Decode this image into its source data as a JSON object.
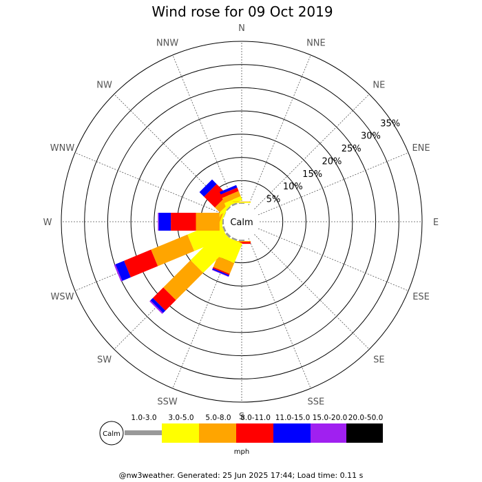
{
  "chart_data": {
    "type": "windrose",
    "title": "Wind rose for 09 Oct 2019",
    "directions": [
      "N",
      "NNE",
      "NE",
      "ENE",
      "E",
      "ESE",
      "SE",
      "SSE",
      "S",
      "SSW",
      "SW",
      "WSW",
      "W",
      "WNW",
      "NW",
      "NNW"
    ],
    "radial_ticks": [
      "5%",
      "10%",
      "15%",
      "20%",
      "25%",
      "30%",
      "35%"
    ],
    "radial_values": [
      5,
      10,
      15,
      20,
      25,
      30,
      35
    ],
    "rmax": 35,
    "calm_label": "Calm",
    "unit": "mph",
    "bins": [
      "1.0-3.0",
      "3.0-5.0",
      "5.0-8.0",
      "8.0-11.0",
      "11.0-15.0",
      "15.0-20.0",
      "20.0-50.0"
    ],
    "bin_colors": [
      "#999999",
      "#ffff00",
      "#ffa500",
      "#ff0000",
      "#0000ff",
      "#a020f0",
      "#000000"
    ],
    "series": [
      {
        "direction": "S",
        "values": [
          0.3,
          0.0,
          0.2,
          0.4,
          0.0,
          0.0,
          0.0
        ]
      },
      {
        "direction": "SSW",
        "values": [
          0.4,
          4.6,
          2.5,
          0.3,
          0.3,
          0.1,
          0.0
        ]
      },
      {
        "direction": "SW",
        "values": [
          0.5,
          9.3,
          8.3,
          3.2,
          0.7,
          0.3,
          0.0
        ]
      },
      {
        "direction": "WSW",
        "values": [
          0.4,
          7.6,
          8.5,
          6.3,
          2.0,
          0.3,
          0.0
        ]
      },
      {
        "direction": "W",
        "values": [
          0.3,
          0.6,
          5.1,
          5.4,
          2.6,
          0.2,
          0.0
        ]
      },
      {
        "direction": "WNW",
        "values": [
          0.1,
          0.4,
          0.4,
          0.0,
          0.0,
          0.0,
          0.0
        ]
      },
      {
        "direction": "NW",
        "values": [
          0.3,
          0.6,
          1.5,
          3.3,
          1.4,
          0.0,
          0.0
        ]
      },
      {
        "direction": "NNW",
        "values": [
          0.4,
          0.9,
          1.2,
          0.8,
          0.6,
          0.0,
          0.0
        ]
      },
      {
        "direction": "N",
        "values": [
          0.2,
          0.2,
          0.1,
          0.0,
          0.0,
          0.0,
          0.0
        ]
      }
    ]
  },
  "footer": "@nw3weather. Generated: 25 Jun 2025 17:44; Load time: 0.11 s"
}
